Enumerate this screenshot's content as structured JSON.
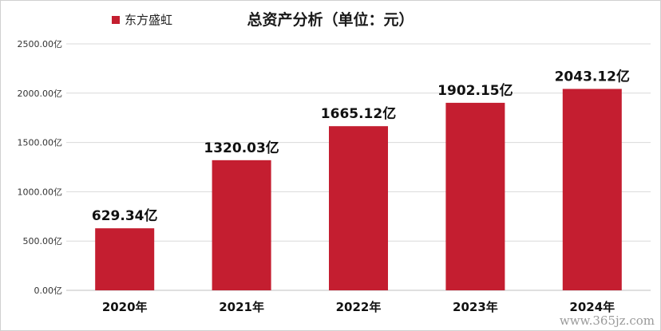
{
  "chart_data": {
    "type": "bar",
    "title": "总资产分析（单位：元）",
    "legend_position": "top-left",
    "grid": true,
    "categories": [
      "2020年",
      "2021年",
      "2022年",
      "2023年",
      "2024年"
    ],
    "series": [
      {
        "name": "东方盛虹",
        "color": "#c41e30",
        "values": [
          629.34,
          1320.03,
          1665.12,
          1902.15,
          2043.12
        ],
        "value_labels": [
          "629.34亿",
          "1320.03亿",
          "1665.12亿",
          "1902.15亿",
          "2043.12亿"
        ]
      }
    ],
    "yticks": [
      0,
      500,
      1000,
      1500,
      2000,
      2500
    ],
    "ytick_labels": [
      "0.00亿",
      "500.00亿",
      "1000.00亿",
      "1500.00亿",
      "2000.00亿",
      "2500.00亿"
    ],
    "ylim": [
      0,
      2500
    ]
  },
  "watermark": "www.365jz.com"
}
